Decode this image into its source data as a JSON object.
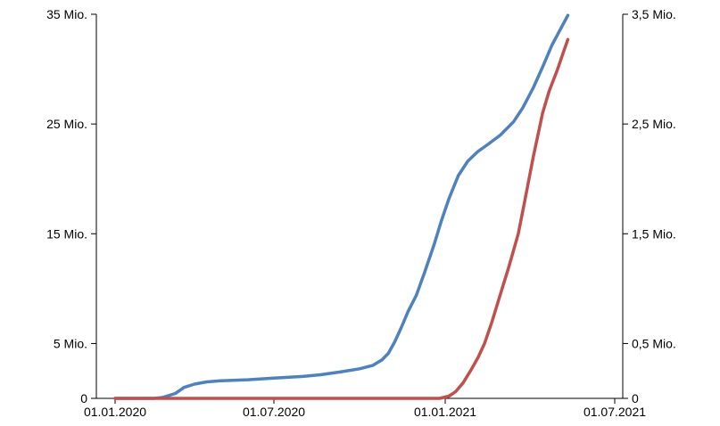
{
  "chart_data": {
    "type": "line",
    "title": "",
    "xlabel": "",
    "ylabel_left": "",
    "ylabel_right": "",
    "x_ticks": [
      "01.01.2020",
      "01.07.2020",
      "01.01.2021",
      "01.07.2021"
    ],
    "y_left": {
      "range": [
        0,
        35000000
      ],
      "ticks": [
        0,
        5000000,
        15000000,
        25000000,
        35000000
      ],
      "tick_labels": [
        "0",
        "5 Mio.",
        "15 Mio.",
        "25 Mio.",
        "35 Mio."
      ]
    },
    "y_right": {
      "range": [
        0,
        3500000
      ],
      "ticks": [
        0,
        500000,
        1500000,
        2500000,
        3500000
      ],
      "tick_labels": [
        "0",
        "0,5 Mio.",
        "1,5 Mio.",
        "2,5 Mio.",
        "3,5 Mio."
      ]
    },
    "grid": false,
    "legend": "none",
    "series": [
      {
        "axis": "left",
        "color": "#4f81bd",
        "points": [
          [
            "2020-01-01",
            0
          ],
          [
            "2020-02-15",
            0
          ],
          [
            "2020-02-25",
            100000
          ],
          [
            "2020-03-10",
            450000
          ],
          [
            "2020-03-20",
            1000000
          ],
          [
            "2020-04-01",
            1300000
          ],
          [
            "2020-04-15",
            1500000
          ],
          [
            "2020-05-01",
            1600000
          ],
          [
            "2020-06-01",
            1700000
          ],
          [
            "2020-07-01",
            1850000
          ],
          [
            "2020-08-01",
            2000000
          ],
          [
            "2020-08-20",
            2150000
          ],
          [
            "2020-09-10",
            2400000
          ],
          [
            "2020-10-01",
            2700000
          ],
          [
            "2020-10-15",
            3000000
          ],
          [
            "2020-10-25",
            3500000
          ],
          [
            "2020-11-01",
            4100000
          ],
          [
            "2020-11-08",
            5200000
          ],
          [
            "2020-11-15",
            6500000
          ],
          [
            "2020-11-22",
            7900000
          ],
          [
            "2020-12-01",
            9400000
          ],
          [
            "2020-12-10",
            11500000
          ],
          [
            "2020-12-20",
            14000000
          ],
          [
            "2020-12-28",
            16200000
          ],
          [
            "2021-01-05",
            18200000
          ],
          [
            "2021-01-15",
            20300000
          ],
          [
            "2021-01-25",
            21600000
          ],
          [
            "2021-02-05",
            22500000
          ],
          [
            "2021-02-15",
            23100000
          ],
          [
            "2021-03-01",
            24000000
          ],
          [
            "2021-03-15",
            25200000
          ],
          [
            "2021-03-25",
            26500000
          ],
          [
            "2021-04-05",
            28300000
          ],
          [
            "2021-04-15",
            30200000
          ],
          [
            "2021-04-25",
            32200000
          ],
          [
            "2021-05-05",
            33800000
          ],
          [
            "2021-05-12",
            34900000
          ]
        ]
      },
      {
        "axis": "right",
        "color": "#c0504d",
        "points": [
          [
            "2020-01-01",
            0
          ],
          [
            "2020-12-26",
            0
          ],
          [
            "2021-01-05",
            20000
          ],
          [
            "2021-01-12",
            60000
          ],
          [
            "2021-01-20",
            140000
          ],
          [
            "2021-01-28",
            250000
          ],
          [
            "2021-02-05",
            370000
          ],
          [
            "2021-02-12",
            500000
          ],
          [
            "2021-02-20",
            700000
          ],
          [
            "2021-03-01",
            950000
          ],
          [
            "2021-03-10",
            1200000
          ],
          [
            "2021-03-20",
            1500000
          ],
          [
            "2021-03-27",
            1800000
          ],
          [
            "2021-04-05",
            2200000
          ],
          [
            "2021-04-15",
            2600000
          ],
          [
            "2021-04-22",
            2800000
          ],
          [
            "2021-05-01",
            3000000
          ],
          [
            "2021-05-07",
            3150000
          ],
          [
            "2021-05-12",
            3270000
          ]
        ]
      }
    ]
  }
}
